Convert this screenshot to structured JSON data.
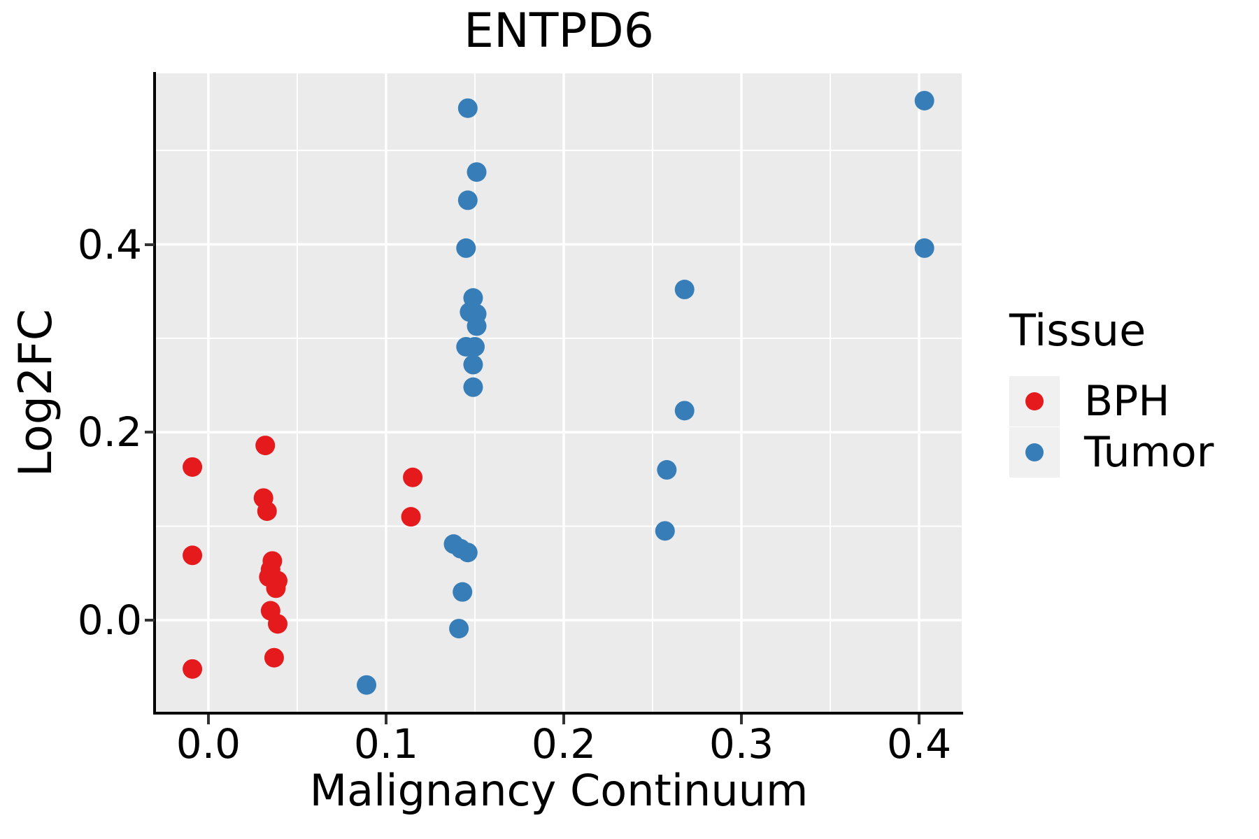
{
  "title": "ENTPD6",
  "axes": {
    "x_title": "Malignancy Continuum",
    "y_title": "Log2FC"
  },
  "legend": {
    "title": "Tissue",
    "items": [
      {
        "label": "BPH",
        "color": "#e41a1c"
      },
      {
        "label": "Tumor",
        "color": "#377eb8"
      }
    ]
  },
  "colors": {
    "panel_background": "#ebebeb",
    "gridline": "#ffffff",
    "axis_line": "#000000",
    "tick_mark": "#333333",
    "legend_key_background": "#f0f0f0",
    "bph_red": "#e41a1c",
    "tumor_blue": "#377eb8"
  },
  "chart_data": {
    "type": "scatter",
    "title": "ENTPD6",
    "xlabel": "Malignancy Continuum",
    "ylabel": "Log2FC",
    "xlim": [
      -0.0295,
      0.424
    ],
    "ylim": [
      -0.099,
      0.582
    ],
    "x_ticks": [
      0.0,
      0.1,
      0.2,
      0.3,
      0.4
    ],
    "y_ticks": [
      0.0,
      0.2,
      0.4
    ],
    "x_minor_gridlines": [
      0.05,
      0.15,
      0.25,
      0.35
    ],
    "y_minor_gridlines": [
      0.1,
      0.3,
      0.5
    ],
    "grid": true,
    "legend_title": "Tissue",
    "legend_position": "right",
    "point_radius_px": 14,
    "series": [
      {
        "name": "BPH",
        "color": "#e41a1c",
        "points": [
          [
            -0.009,
            0.163
          ],
          [
            -0.009,
            0.069
          ],
          [
            -0.009,
            -0.052
          ],
          [
            0.032,
            0.186
          ],
          [
            0.031,
            0.13
          ],
          [
            0.033,
            0.116
          ],
          [
            0.036,
            0.063
          ],
          [
            0.035,
            0.054
          ],
          [
            0.034,
            0.046
          ],
          [
            0.039,
            0.042
          ],
          [
            0.038,
            0.034
          ],
          [
            0.035,
            0.01
          ],
          [
            0.039,
            -0.004
          ],
          [
            0.037,
            -0.04
          ],
          [
            0.115,
            0.152
          ],
          [
            0.114,
            0.11
          ]
        ]
      },
      {
        "name": "Tumor",
        "color": "#377eb8",
        "points": [
          [
            0.089,
            -0.069
          ],
          [
            0.146,
            0.545
          ],
          [
            0.151,
            0.477
          ],
          [
            0.146,
            0.447
          ],
          [
            0.145,
            0.396
          ],
          [
            0.149,
            0.343
          ],
          [
            0.147,
            0.328
          ],
          [
            0.151,
            0.326
          ],
          [
            0.151,
            0.313
          ],
          [
            0.145,
            0.291
          ],
          [
            0.15,
            0.291
          ],
          [
            0.149,
            0.272
          ],
          [
            0.149,
            0.248
          ],
          [
            0.138,
            0.081
          ],
          [
            0.142,
            0.076
          ],
          [
            0.146,
            0.072
          ],
          [
            0.143,
            0.03
          ],
          [
            0.141,
            -0.009
          ],
          [
            0.268,
            0.352
          ],
          [
            0.268,
            0.223
          ],
          [
            0.258,
            0.16
          ],
          [
            0.257,
            0.095
          ],
          [
            0.403,
            0.553
          ],
          [
            0.403,
            0.396
          ]
        ]
      }
    ]
  }
}
